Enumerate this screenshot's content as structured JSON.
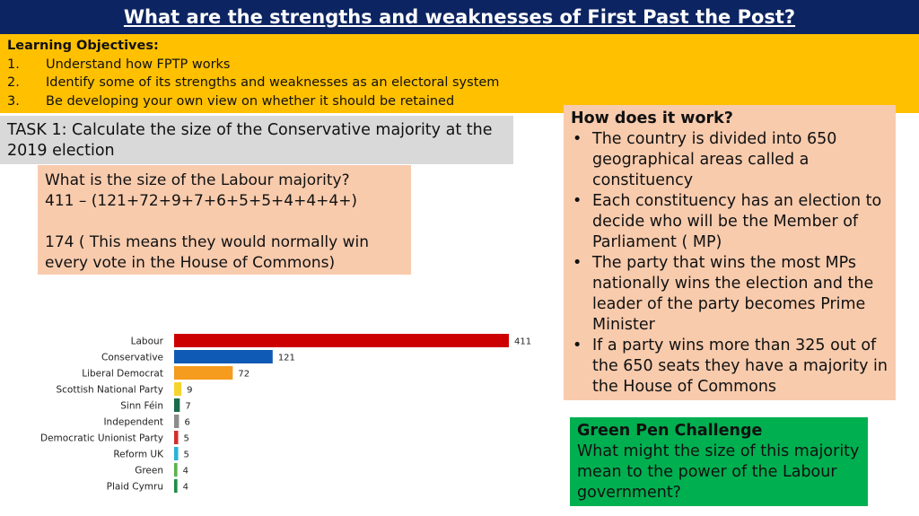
{
  "title": "What are the strengths and weaknesses of First Past the Post?",
  "objectives": {
    "heading": "Learning Objectives:",
    "items": [
      {
        "num": "1.",
        "text": "Understand how FPTP works"
      },
      {
        "num": "2.",
        "text": "Identify some of its strengths and weaknesses as an electoral system"
      },
      {
        "num": "3.",
        "text": "Be developing your own view on whether it should be retained"
      }
    ]
  },
  "task": {
    "line1": "TASK 1: Calculate the size of the Conservative majority at the",
    "line2": "2019 election"
  },
  "labour_box": {
    "line1": "What is the size of the Labour  majority?",
    "line2": "411 – (121+72+9+7+6+5+5+4+4+4+)",
    "line3": "174 ( This means they would normally  win",
    "line4": "every vote in the House of Commons)"
  },
  "how": {
    "heading": "How does it work?",
    "bullet_char": "•",
    "bullets": [
      "The country is divided into 650 geographical areas called a constituency",
      "Each constituency has an election to decide who will be the Member of Parliament ( MP)",
      "The party that wins the most MPs nationally wins the election and the leader of the party becomes Prime Minister",
      "If a party wins more than 325 out of the 650 seats they have a majority in the House of Commons"
    ]
  },
  "green_pen": {
    "heading": "Green Pen Challenge",
    "body": "What might the size of this majority mean to the power of the Labour government?"
  },
  "colors": {
    "title_bg": "#0c2461",
    "objectives_bg": "#ffc000",
    "task_bg": "#d9d9d9",
    "peach_bg": "#f8cbad",
    "green_bg": "#00b050"
  },
  "chart_data": {
    "type": "bar",
    "orientation": "horizontal",
    "categories": [
      "Labour",
      "Conservative",
      "Liberal Democrat",
      "Scottish National Party",
      "Sinn Féin",
      "Independent",
      "Democratic Unionist Party",
      "Reform UK",
      "Green",
      "Plaid Cymru"
    ],
    "values": [
      411,
      121,
      72,
      9,
      7,
      6,
      5,
      5,
      4,
      4
    ],
    "colors": [
      "#cc0000",
      "#0f5ab4",
      "#f59b1d",
      "#f5d430",
      "#1a6b4a",
      "#8c8c8c",
      "#d22e2e",
      "#2bb3d6",
      "#5ab44b",
      "#1e8c46"
    ],
    "xlim": [
      0,
      411
    ],
    "title": "",
    "xlabel": "",
    "ylabel": "",
    "grid": false,
    "legend": "none"
  }
}
